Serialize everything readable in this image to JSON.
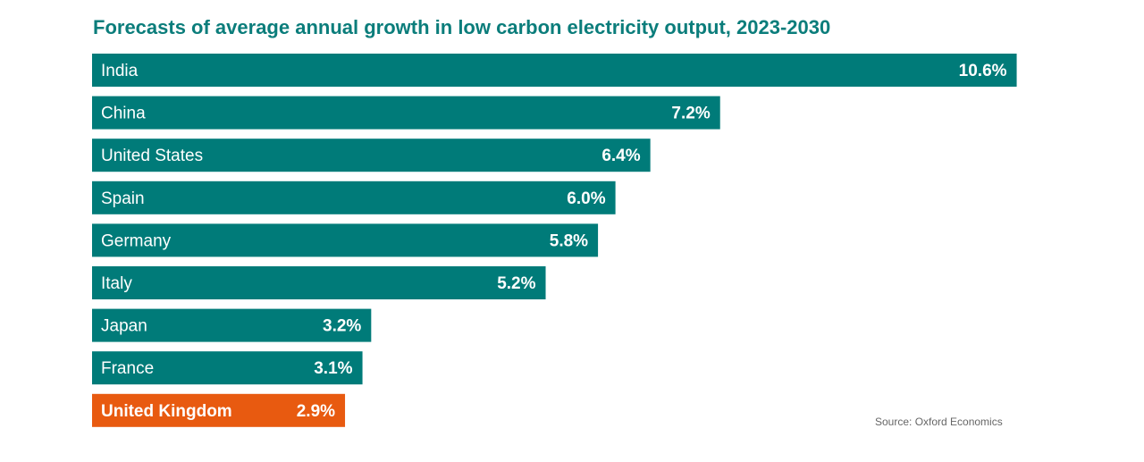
{
  "chart_data": {
    "type": "bar",
    "orientation": "horizontal",
    "title": "Forecasts of average annual growth in low carbon electricity output, 2023-2030",
    "categories": [
      "India",
      "China",
      "United States",
      "Spain",
      "Germany",
      "Italy",
      "Japan",
      "France",
      "United Kingdom"
    ],
    "values": [
      10.6,
      7.2,
      6.4,
      6.0,
      5.8,
      5.2,
      3.2,
      3.1,
      2.9
    ],
    "labels": [
      "10.6%",
      "7.2%",
      "6.4%",
      "6.0%",
      "5.8%",
      "5.2%",
      "3.2%",
      "3.1%",
      "2.9%"
    ],
    "highlight": "United Kingdom",
    "colors": {
      "default": "#007b79",
      "highlight": "#e85a10"
    },
    "source": "Source: Oxford Economics",
    "grid": false,
    "legend": "none"
  }
}
